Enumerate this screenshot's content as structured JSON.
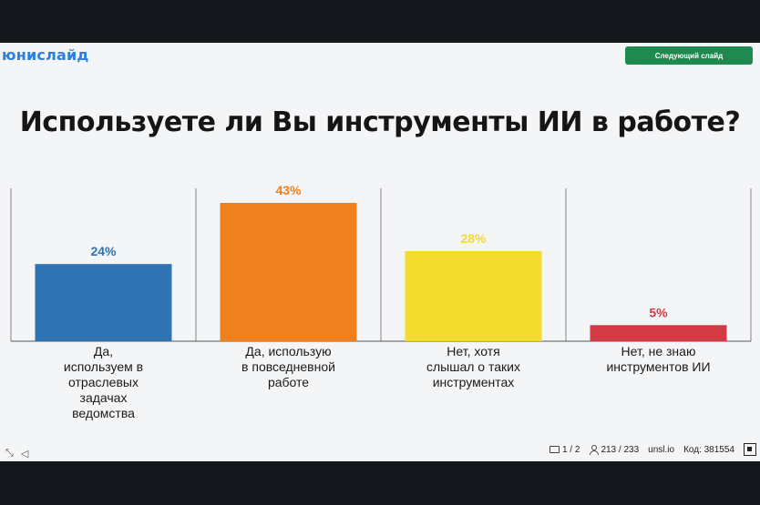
{
  "header": {
    "logo": "юнислайд",
    "next_button": "Следующий слайд"
  },
  "slide": {
    "title": "Используете ли Вы инструменты ИИ в работе?"
  },
  "footer": {
    "slide_counter": "1 / 2",
    "participants": "213 / 233",
    "site": "unsl.io",
    "code": "Код: 381554"
  },
  "icons": {
    "expand": "expand-icon",
    "sound": "sound-icon",
    "image": "image-icon",
    "user": "user-icon",
    "qr": "qr-icon"
  },
  "chart_data": {
    "type": "bar",
    "categories": [
      [
        "Да,",
        "используем в",
        "отраслевых",
        "задачах",
        "ведомства"
      ],
      [
        "Да, использую",
        "в повседневной",
        "работе"
      ],
      [
        "Нет, хотя",
        "слышал о таких",
        "инструментах"
      ],
      [
        "Нет, не знаю",
        "инструментов ИИ"
      ]
    ],
    "values": [
      24,
      43,
      28,
      5
    ],
    "value_labels": [
      "24%",
      "43%",
      "28%",
      "5%"
    ],
    "colors": [
      "#2f73b3",
      "#f07f1e",
      "#f2dc2c",
      "#d43a45"
    ],
    "label_colors": [
      "#2f73b3",
      "#f07f1e",
      "#f2dc2c",
      "#d43a45"
    ],
    "title": "",
    "xlabel": "",
    "ylabel": "",
    "ylim": [
      0,
      43
    ],
    "grid": false
  }
}
